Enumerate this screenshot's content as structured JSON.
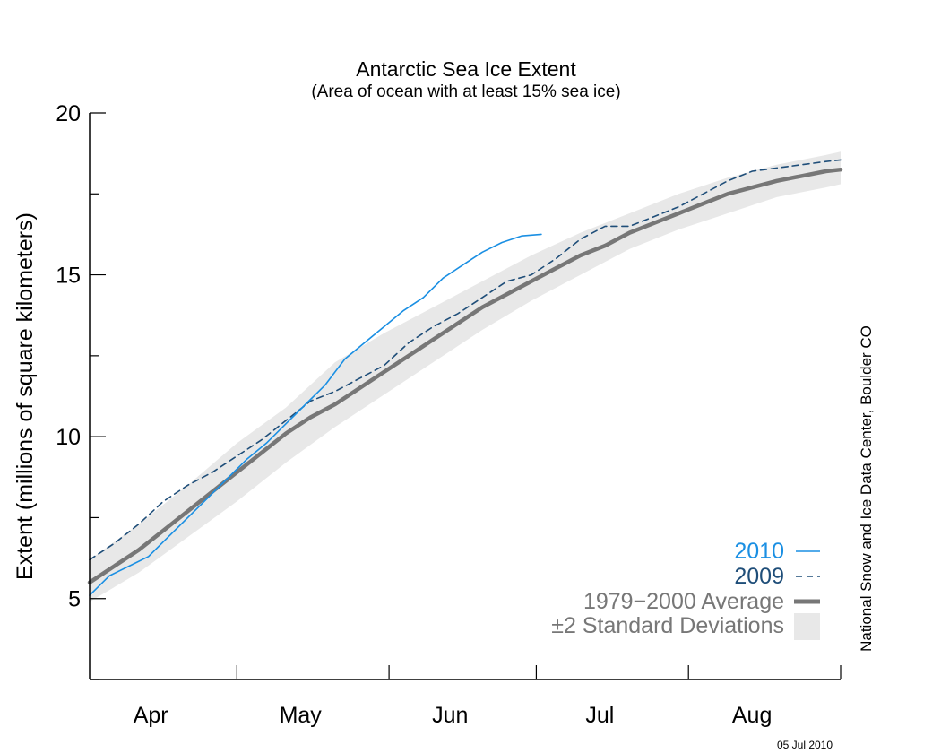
{
  "chart_data": {
    "type": "line",
    "title": "Antarctic Sea Ice Extent",
    "subtitle": "(Area of ocean with at least 15% sea ice)",
    "ylabel": "Extent (millions of square kilometers)",
    "xlabel": "",
    "ylim": [
      2.5,
      20
    ],
    "xlim": [
      0,
      153
    ],
    "y_ticks": [
      5,
      10,
      15,
      20
    ],
    "x_tick_labels": [
      "Apr",
      "May",
      "Jun",
      "Jul",
      "Aug"
    ],
    "x_month_boundaries_days": [
      0,
      30,
      61,
      91,
      122,
      153
    ],
    "grid": false,
    "legend_position": "bottom-right",
    "credit": "National Snow and Ice Data Center, Boulder CO",
    "date_stamp": "05 Jul 2010",
    "colors": {
      "series_2010": "#1a8fe3",
      "series_2009": "#1f4e79",
      "average": "#777777",
      "band": "#e8e8e8",
      "axis": "#000000"
    },
    "series": [
      {
        "name": "2010",
        "style": "solid",
        "x": [
          0,
          4,
          8,
          12,
          16,
          20,
          24,
          28,
          32,
          36,
          40,
          44,
          48,
          52,
          56,
          60,
          64,
          68,
          72,
          76,
          80,
          84,
          88,
          92
        ],
        "values": [
          5.1,
          5.7,
          6.0,
          6.3,
          6.9,
          7.5,
          8.1,
          8.7,
          9.3,
          9.8,
          10.4,
          11.0,
          11.6,
          12.4,
          12.9,
          13.4,
          13.9,
          14.3,
          14.9,
          15.3,
          15.7,
          16.0,
          16.2,
          16.25
        ]
      },
      {
        "name": "2009",
        "style": "dashed",
        "x": [
          0,
          5,
          10,
          15,
          20,
          25,
          30,
          35,
          40,
          45,
          50,
          55,
          60,
          65,
          70,
          75,
          80,
          85,
          90,
          95,
          100,
          105,
          110,
          115,
          120,
          125,
          130,
          135,
          140,
          145,
          150,
          153
        ],
        "values": [
          6.2,
          6.7,
          7.3,
          8.0,
          8.5,
          8.9,
          9.4,
          9.9,
          10.5,
          11.1,
          11.4,
          11.8,
          12.2,
          12.9,
          13.4,
          13.8,
          14.3,
          14.8,
          15.0,
          15.5,
          16.1,
          16.5,
          16.5,
          16.8,
          17.1,
          17.5,
          17.9,
          18.2,
          18.3,
          18.4,
          18.5,
          18.55
        ]
      },
      {
        "name": "1979−2000 Average",
        "style": "thick",
        "x": [
          0,
          5,
          10,
          15,
          20,
          25,
          30,
          35,
          40,
          45,
          50,
          55,
          60,
          65,
          70,
          75,
          80,
          85,
          90,
          95,
          100,
          105,
          110,
          115,
          120,
          125,
          130,
          135,
          140,
          145,
          150,
          153
        ],
        "values": [
          5.5,
          6.0,
          6.5,
          7.1,
          7.7,
          8.3,
          8.9,
          9.5,
          10.1,
          10.6,
          11.0,
          11.5,
          12.0,
          12.5,
          13.0,
          13.5,
          14.0,
          14.4,
          14.8,
          15.2,
          15.6,
          15.9,
          16.3,
          16.6,
          16.9,
          17.2,
          17.5,
          17.7,
          17.9,
          18.05,
          18.2,
          18.25
        ]
      }
    ],
    "band": {
      "name": "±2 Standard Deviations",
      "x": [
        0,
        10,
        20,
        30,
        40,
        50,
        60,
        70,
        80,
        90,
        100,
        110,
        120,
        130,
        140,
        150,
        153
      ],
      "lower": [
        4.9,
        5.8,
        6.9,
        8.0,
        9.2,
        10.3,
        11.3,
        12.3,
        13.3,
        14.2,
        15.0,
        15.8,
        16.4,
        16.9,
        17.4,
        17.7,
        17.8
      ],
      "upper": [
        6.2,
        7.3,
        8.5,
        9.8,
        10.9,
        12.3,
        13.2,
        14.0,
        14.8,
        15.6,
        16.3,
        16.9,
        17.5,
        18.0,
        18.4,
        18.7,
        18.8
      ]
    }
  }
}
